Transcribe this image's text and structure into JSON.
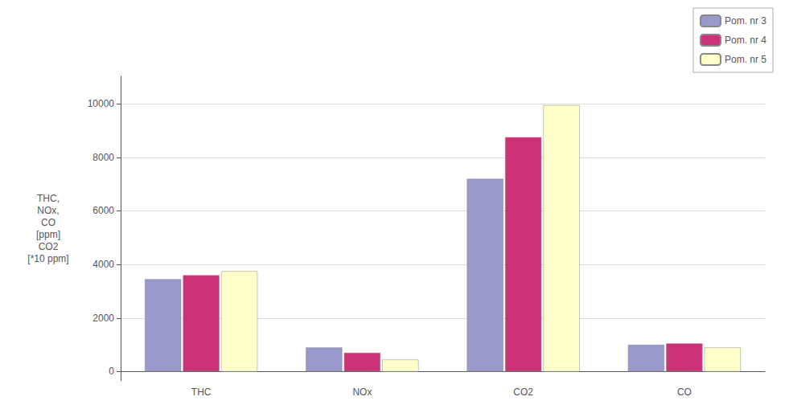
{
  "chart_data": {
    "type": "bar",
    "categories": [
      "THC",
      "NOx",
      "CO2",
      "CO"
    ],
    "series": [
      {
        "name": "Pom. nr 3",
        "color": "#9999CC",
        "values": [
          3450,
          900,
          7200,
          1000
        ]
      },
      {
        "name": "Pom. nr 4",
        "color": "#CC3377",
        "values": [
          3600,
          700,
          8750,
          1050
        ]
      },
      {
        "name": "Pom. nr 5",
        "color": "#FFFFCC",
        "values": [
          3750,
          450,
          9950,
          900
        ]
      }
    ],
    "ylabel": "THC,\nNOx,\nCO\n[ppm]\nCO2\n[*10 ppm]",
    "ylim": [
      -346.5,
      11025
    ],
    "yticks": [
      0,
      2000,
      4000,
      6000,
      8000,
      10000
    ],
    "grid": true,
    "legend": "upper right"
  }
}
